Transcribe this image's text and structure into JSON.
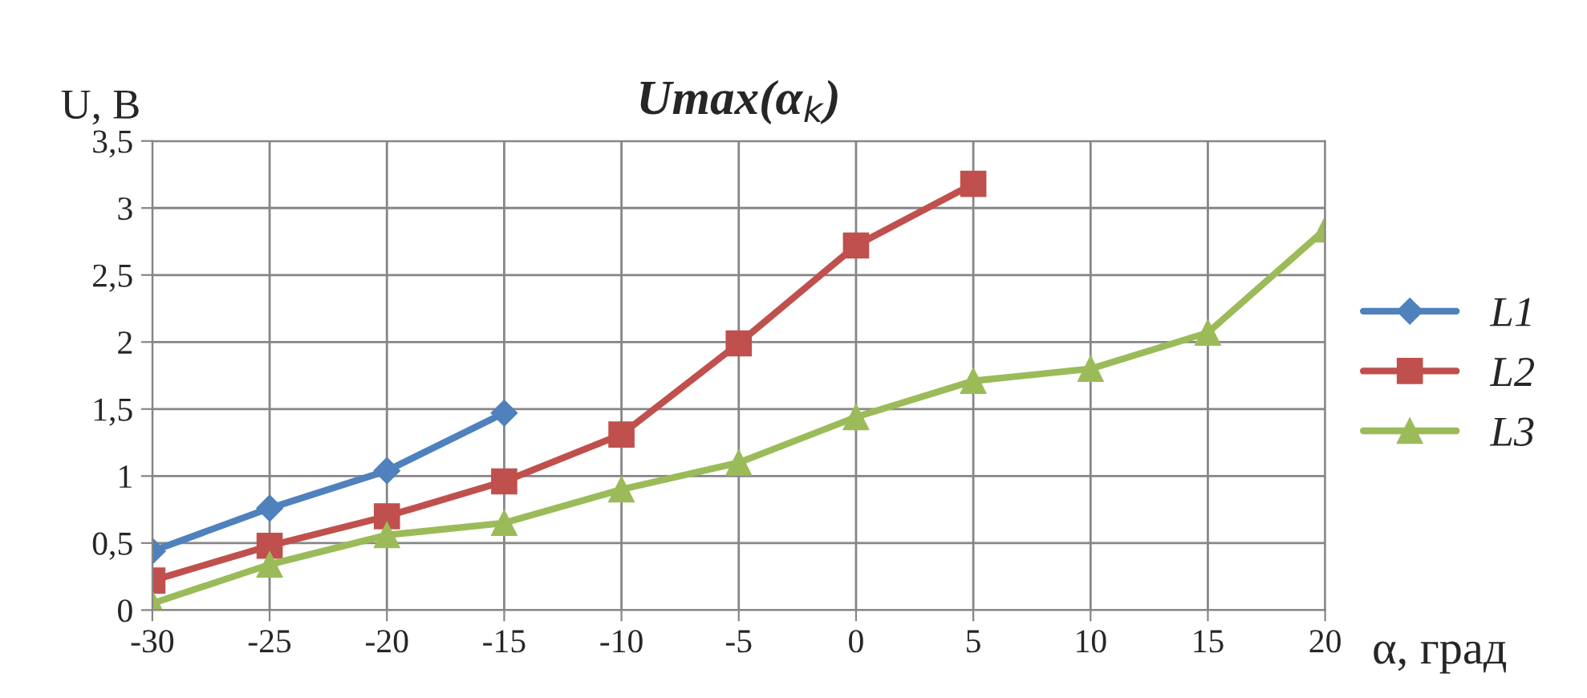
{
  "chart_data": {
    "type": "line",
    "title": "Umax(α$_{k}$)",
    "xlabel": "α, град",
    "ylabel": "U, В",
    "x": [
      -30,
      -25,
      -20,
      -15,
      -10,
      -5,
      0,
      5,
      10,
      15,
      20
    ],
    "series": [
      {
        "name": "L1",
        "color": "#4f81bd",
        "marker": "diamond",
        "values": [
          0.44,
          0.76,
          1.04,
          1.47,
          null,
          null,
          null,
          null,
          null,
          null,
          null
        ]
      },
      {
        "name": "L2",
        "color": "#c0504d",
        "marker": "square",
        "values": [
          0.22,
          0.48,
          0.7,
          0.96,
          1.31,
          1.99,
          2.72,
          3.18,
          null,
          null,
          null
        ]
      },
      {
        "name": "L3",
        "color": "#9bbb59",
        "marker": "triangle",
        "values": [
          0.05,
          0.34,
          0.56,
          0.65,
          0.9,
          1.1,
          1.44,
          1.71,
          1.8,
          2.07,
          2.84
        ]
      }
    ],
    "xlim": [
      -30,
      20
    ],
    "xticks": [
      -30,
      -25,
      -20,
      -15,
      -10,
      -5,
      0,
      5,
      10,
      15,
      20
    ],
    "ylim": [
      0,
      3.5
    ],
    "yticks": [
      0,
      {
        "value": 0.5,
        "label": "0,5"
      },
      1,
      {
        "value": 1.5,
        "label": "1,5"
      },
      2,
      {
        "value": 2.5,
        "label": "2,5"
      },
      3,
      {
        "value": 3.5,
        "label": "3,5"
      }
    ],
    "grid": true,
    "legend": "right",
    "line_style": "solid"
  }
}
